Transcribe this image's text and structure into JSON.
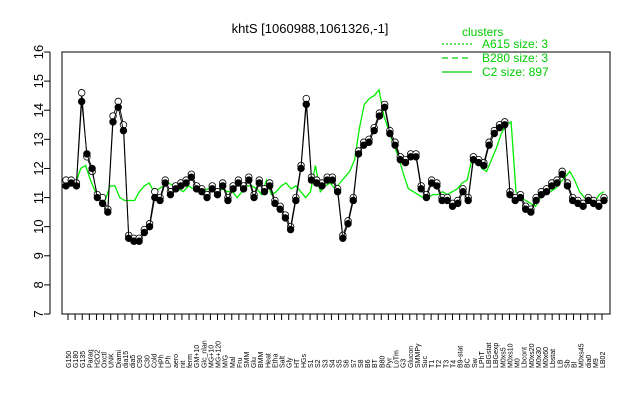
{
  "chart_data": {
    "type": "line",
    "title": "khtS [1060988,1061326,-1]",
    "xlabel": "",
    "ylabel": "",
    "ylim": [
      7,
      16
    ],
    "yticks": [
      7,
      8,
      9,
      10,
      11,
      12,
      13,
      14,
      15,
      16
    ],
    "grid": false,
    "legend": {
      "title": "clusters",
      "placement": "top-right",
      "entries": [
        {
          "label": "A615 size: 3",
          "style": "dotted",
          "color": "#00cc00"
        },
        {
          "label": "B280 size: 3",
          "style": "dashed",
          "color": "#00cc00"
        },
        {
          "label": "C2 size: 897",
          "style": "solid",
          "color": "#00cc00"
        }
      ]
    },
    "xtick_labels": [
      "G150",
      "G180",
      "G135",
      "Paraq",
      "H2O2",
      "Oxctl",
      "UNK",
      "Diami",
      "dia15",
      "dia5",
      "C90",
      "C30",
      "Cold",
      "HPh",
      "LPh",
      "aero",
      "nit",
      "ferm",
      "GM+10",
      "Glc_nlan",
      "MG+10",
      "MG+120",
      "M/G",
      "Mal",
      "Fru",
      "SMM",
      "Glu",
      "BMM",
      "Heat",
      "Etha",
      "Salt",
      "Gly",
      "HT",
      "HGs",
      "S1",
      "S2",
      "S3",
      "S4",
      "S5",
      "S6",
      "S7",
      "S8",
      "B6",
      "BT",
      "B80",
      "Pyr",
      "LoTm",
      "G3",
      "Glucon",
      "SMMPy",
      "Suc",
      "T1",
      "T2",
      "T3",
      "T4",
      "B9-stat",
      "BC",
      "Sw",
      "LPhT",
      "LBGstat",
      "LBGexp",
      "M0xs5",
      "M0xs10",
      "M0",
      "Lbcont",
      "M0xs20",
      "M0x30",
      "M0x60",
      "Lbstat",
      "LB",
      "Sb",
      "Bl",
      "M0xs45",
      "dia0",
      "M9",
      "LB02"
    ],
    "series": [
      {
        "name": "C2 size: 897",
        "style": "solid",
        "values": [
          11.5,
          11.7,
          11.5,
          12.0,
          12.1,
          11.6,
          11.2,
          11.0,
          10.9,
          11.4,
          11.4,
          11.0,
          10.9,
          10.9,
          10.9,
          11.2,
          11.4,
          11.5,
          11.2,
          11.3,
          11.4,
          11.5,
          11.4,
          11.3,
          11.2,
          11.4,
          11.3,
          11.3,
          11.2,
          11.3,
          11.3,
          11.2,
          11.3,
          11.2,
          11.2,
          11.0,
          11.2,
          11.4,
          11.4,
          11.3,
          11.1,
          11.6,
          11.1,
          11.2,
          11.4,
          11.5,
          11.3,
          11.4,
          11.2,
          11.0,
          11.2,
          12.1,
          11.2,
          11.4,
          11.5,
          11.3,
          11.5,
          11.7,
          11.9,
          12.3,
          13.4,
          14.2,
          14.4,
          14.5,
          14.7,
          13.8,
          13.3,
          12.8,
          12.4,
          11.8,
          11.3,
          11.2,
          11.1,
          11.0,
          11.0,
          11.1,
          11.1,
          11.2,
          11.1,
          11.2,
          11.3,
          11.5,
          11.6,
          12.3,
          12.4,
          12.0,
          11.9,
          12.3,
          12.7,
          13.2,
          13.5,
          13.6,
          11.2,
          11.0,
          10.9,
          10.8,
          10.7,
          11.0,
          11.1,
          11.2,
          11.3,
          11.5,
          11.7,
          11.9,
          11.6,
          11.2,
          11.0,
          10.9,
          10.8,
          11.1,
          11.2
        ]
      },
      {
        "name": "A615 size: 3",
        "style": "dotted",
        "values": [
          11.6,
          11.6,
          11.5,
          14.6,
          12.4,
          11.9,
          11.1,
          11.0,
          10.6,
          13.8,
          14.3,
          13.5,
          9.7,
          9.6,
          9.6,
          9.9,
          10.1,
          11.2,
          11.0,
          11.6,
          11.2,
          11.4,
          11.5,
          11.6,
          11.8,
          11.4,
          11.3,
          11.1,
          11.4,
          11.2,
          11.5,
          11.0,
          11.4,
          11.6,
          11.4,
          11.7,
          11.1,
          11.6,
          11.3,
          11.5,
          10.9,
          10.7,
          10.4,
          10.0,
          11.0,
          12.1,
          14.4,
          11.7,
          11.6,
          11.5,
          11.7,
          11.7,
          11.3,
          9.7,
          10.2,
          11.0,
          12.6,
          12.9,
          13.0,
          13.4,
          13.9,
          14.2,
          13.3,
          12.9,
          12.4,
          12.3,
          12.5,
          12.5,
          11.4,
          11.1,
          11.6,
          11.5,
          11.0,
          11.0,
          10.8,
          10.9,
          11.3,
          11.0,
          12.4,
          12.3,
          12.2,
          12.9,
          13.3,
          13.5,
          13.6,
          11.2,
          11.0,
          11.1,
          10.7,
          10.6,
          11.0,
          11.2,
          11.3,
          11.5,
          11.6,
          11.9,
          11.5,
          11.0,
          10.9,
          10.8,
          11.0,
          10.9,
          10.8,
          11.0
        ]
      },
      {
        "name": "B280 size: 3",
        "style": "dashed",
        "values": [
          11.4,
          11.5,
          11.4,
          14.3,
          12.5,
          12.0,
          11.0,
          10.8,
          10.5,
          13.6,
          14.1,
          13.3,
          9.6,
          9.5,
          9.5,
          9.8,
          10.0,
          11.0,
          10.9,
          11.5,
          11.1,
          11.3,
          11.4,
          11.5,
          11.7,
          11.3,
          11.2,
          11.0,
          11.3,
          11.1,
          11.4,
          10.9,
          11.3,
          11.5,
          11.3,
          11.6,
          11.0,
          11.5,
          11.2,
          11.4,
          10.8,
          10.6,
          10.3,
          9.9,
          10.9,
          12.0,
          14.2,
          11.6,
          11.5,
          11.4,
          11.6,
          11.6,
          11.2,
          9.6,
          10.1,
          10.9,
          12.5,
          12.8,
          12.9,
          13.3,
          13.8,
          14.1,
          13.2,
          12.8,
          12.3,
          12.2,
          12.4,
          12.4,
          11.3,
          11.0,
          11.5,
          11.4,
          10.9,
          10.9,
          10.7,
          10.8,
          11.2,
          10.9,
          12.3,
          12.2,
          12.1,
          12.8,
          13.2,
          13.4,
          13.5,
          11.1,
          10.9,
          11.0,
          10.6,
          10.5,
          10.9,
          11.1,
          11.2,
          11.4,
          11.5,
          11.8,
          11.4,
          10.9,
          10.8,
          10.7,
          10.9,
          10.8,
          10.7,
          10.9
        ]
      }
    ]
  }
}
